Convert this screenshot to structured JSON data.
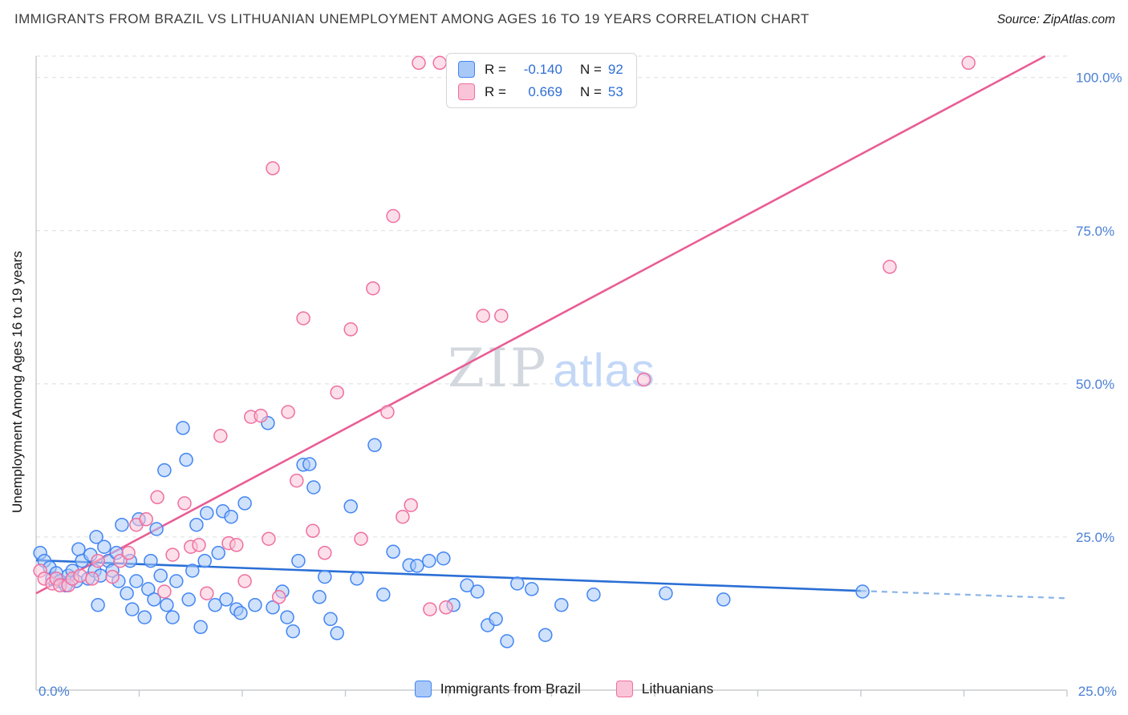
{
  "header": {
    "title": "IMMIGRANTS FROM BRAZIL VS LITHUANIAN UNEMPLOYMENT AMONG AGES 16 TO 19 YEARS CORRELATION CHART",
    "source": "Source: ZipAtlas.com"
  },
  "watermark": {
    "zip": "ZIP",
    "atlas": "atlas"
  },
  "y_axis_label": "Unemployment Among Ages 16 to 19 years",
  "x_axis": {
    "min_label": "0.0%",
    "max_label": "25.0%"
  },
  "stats_legend": {
    "rows": [
      {
        "r_label": "R =",
        "r_value": "-0.140",
        "n_label": "N =",
        "n_value": "92"
      },
      {
        "r_label": "R =",
        "r_value": "0.669",
        "n_label": "N =",
        "n_value": "53"
      }
    ]
  },
  "bottom_legend": {
    "items": [
      {
        "label": "Immigrants from Brazil"
      },
      {
        "label": "Lithuanians"
      }
    ]
  },
  "colors": {
    "accent_text": "#4a80d6",
    "stat_value": "#2f6fd4",
    "grid": "#dcdee1",
    "blue_stroke": "#4285f4",
    "blue_fill": "#a8c8f8",
    "blue_line": "#2a6fd4",
    "blue_dash": "#8ab4e8",
    "pink_stroke": "#ef6fa0",
    "pink_fill": "#f9c4d7",
    "pink_line": "#e95d94"
  },
  "chart_data": {
    "type": "scatter",
    "title": "IMMIGRANTS FROM BRAZIL VS LITHUANIAN UNEMPLOYMENT AMONG AGES 16 TO 19 YEARS CORRELATION CHART",
    "xlabel": "Immigrants from Brazil (%)",
    "ylabel": "Unemployment Among Ages 16 to 19 years",
    "xlim": [
      0,
      0.25
    ],
    "ylim": [
      0,
      1.035
    ],
    "grid": "horizontal-dashed",
    "legend_position": "top-center and bottom-center",
    "xticks": [
      0.025,
      0.05,
      0.075,
      0.1,
      0.125,
      0.15,
      0.175,
      0.2,
      0.225,
      0.25
    ],
    "ygrid": [
      {
        "value": 0.25,
        "label": "25.0%"
      },
      {
        "value": 0.5,
        "label": "50.0%"
      },
      {
        "value": 0.75,
        "label": "75.0%"
      },
      {
        "value": 1.0,
        "label": "100.0%"
      }
    ],
    "series": [
      {
        "name": "Immigrants from Brazil",
        "R": -0.14,
        "N": 92,
        "stroke": "#4285f4",
        "fill": "#a8c8f8",
        "line": "#2a6fd4",
        "dash_line": "#8ab4e8",
        "trend": {
          "solid": [
            [
              0,
              0.212
            ],
            [
              0.2,
              0.162
            ]
          ],
          "dashed": [
            [
              0.2,
              0.162
            ],
            [
              0.25,
              0.15
            ]
          ]
        },
        "points": [
          [
            0.001,
            0.224
          ],
          [
            0.002,
            0.211
          ],
          [
            0.0033,
            0.2
          ],
          [
            0.0039,
            0.182
          ],
          [
            0.0049,
            0.191
          ],
          [
            0.0058,
            0.178
          ],
          [
            0.0072,
            0.171
          ],
          [
            0.0078,
            0.187
          ],
          [
            0.0088,
            0.195
          ],
          [
            0.0097,
            0.178
          ],
          [
            0.0103,
            0.23
          ],
          [
            0.0111,
            0.211
          ],
          [
            0.0126,
            0.182
          ],
          [
            0.0132,
            0.221
          ],
          [
            0.0142,
            0.195
          ],
          [
            0.0146,
            0.25
          ],
          [
            0.015,
            0.139
          ],
          [
            0.0156,
            0.187
          ],
          [
            0.0165,
            0.234
          ],
          [
            0.0175,
            0.211
          ],
          [
            0.0185,
            0.195
          ],
          [
            0.0195,
            0.224
          ],
          [
            0.02,
            0.178
          ],
          [
            0.0208,
            0.27
          ],
          [
            0.022,
            0.158
          ],
          [
            0.0228,
            0.211
          ],
          [
            0.0233,
            0.132
          ],
          [
            0.0243,
            0.178
          ],
          [
            0.0249,
            0.279
          ],
          [
            0.0263,
            0.119
          ],
          [
            0.0272,
            0.165
          ],
          [
            0.0278,
            0.211
          ],
          [
            0.0286,
            0.148
          ],
          [
            0.0292,
            0.263
          ],
          [
            0.0302,
            0.187
          ],
          [
            0.0311,
            0.359
          ],
          [
            0.0317,
            0.139
          ],
          [
            0.0331,
            0.119
          ],
          [
            0.034,
            0.178
          ],
          [
            0.0356,
            0.428
          ],
          [
            0.0364,
            0.376
          ],
          [
            0.037,
            0.148
          ],
          [
            0.0379,
            0.195
          ],
          [
            0.0389,
            0.27
          ],
          [
            0.0399,
            0.103
          ],
          [
            0.0409,
            0.211
          ],
          [
            0.0414,
            0.289
          ],
          [
            0.0434,
            0.139
          ],
          [
            0.0442,
            0.224
          ],
          [
            0.0453,
            0.292
          ],
          [
            0.0461,
            0.148
          ],
          [
            0.0473,
            0.283
          ],
          [
            0.0486,
            0.132
          ],
          [
            0.0496,
            0.126
          ],
          [
            0.0506,
            0.305
          ],
          [
            0.0531,
            0.139
          ],
          [
            0.0562,
            0.436
          ],
          [
            0.0574,
            0.135
          ],
          [
            0.0597,
            0.161
          ],
          [
            0.0609,
            0.119
          ],
          [
            0.0623,
            0.096
          ],
          [
            0.0636,
            0.211
          ],
          [
            0.0648,
            0.368
          ],
          [
            0.0663,
            0.369
          ],
          [
            0.0673,
            0.331
          ],
          [
            0.0687,
            0.152
          ],
          [
            0.07,
            0.185
          ],
          [
            0.0714,
            0.116
          ],
          [
            0.073,
            0.093
          ],
          [
            0.0763,
            0.3
          ],
          [
            0.0778,
            0.182
          ],
          [
            0.0821,
            0.4
          ],
          [
            0.0842,
            0.156
          ],
          [
            0.0866,
            0.226
          ],
          [
            0.0905,
            0.204
          ],
          [
            0.0924,
            0.203
          ],
          [
            0.0953,
            0.211
          ],
          [
            0.0988,
            0.215
          ],
          [
            0.1012,
            0.139
          ],
          [
            0.1045,
            0.171
          ],
          [
            0.107,
            0.161
          ],
          [
            0.1095,
            0.106
          ],
          [
            0.1115,
            0.116
          ],
          [
            0.1142,
            0.08
          ],
          [
            0.1167,
            0.174
          ],
          [
            0.1202,
            0.165
          ],
          [
            0.1235,
            0.09
          ],
          [
            0.1274,
            0.139
          ],
          [
            0.1352,
            0.156
          ],
          [
            0.1527,
            0.158
          ],
          [
            0.1667,
            0.148
          ],
          [
            0.2004,
            0.161
          ]
        ]
      },
      {
        "name": "Lithuanians",
        "R": 0.669,
        "N": 53,
        "stroke": "#ef6fa0",
        "fill": "#f9c4d7",
        "line": "#e95d94",
        "trend": {
          "solid": [
            [
              0,
              0.158
            ],
            [
              0.2447,
              1.035
            ]
          ]
        },
        "points": [
          [
            0.001,
            0.195
          ],
          [
            0.002,
            0.182
          ],
          [
            0.0039,
            0.174
          ],
          [
            0.0049,
            0.182
          ],
          [
            0.0058,
            0.171
          ],
          [
            0.0078,
            0.171
          ],
          [
            0.0088,
            0.182
          ],
          [
            0.0107,
            0.187
          ],
          [
            0.0136,
            0.182
          ],
          [
            0.015,
            0.211
          ],
          [
            0.0185,
            0.185
          ],
          [
            0.0204,
            0.211
          ],
          [
            0.0224,
            0.224
          ],
          [
            0.0243,
            0.27
          ],
          [
            0.0267,
            0.279
          ],
          [
            0.0294,
            0.315
          ],
          [
            0.0311,
            0.161
          ],
          [
            0.0331,
            0.221
          ],
          [
            0.036,
            0.305
          ],
          [
            0.0375,
            0.234
          ],
          [
            0.0395,
            0.237
          ],
          [
            0.0414,
            0.158
          ],
          [
            0.0447,
            0.415
          ],
          [
            0.0467,
            0.24
          ],
          [
            0.0486,
            0.237
          ],
          [
            0.0506,
            0.178
          ],
          [
            0.0521,
            0.446
          ],
          [
            0.0545,
            0.448
          ],
          [
            0.0564,
            0.247
          ],
          [
            0.0574,
            0.852
          ],
          [
            0.0589,
            0.152
          ],
          [
            0.0611,
            0.454
          ],
          [
            0.0632,
            0.342
          ],
          [
            0.0648,
            0.607
          ],
          [
            0.0671,
            0.26
          ],
          [
            0.07,
            0.224
          ],
          [
            0.073,
            0.486
          ],
          [
            0.0763,
            0.589
          ],
          [
            0.0788,
            0.247
          ],
          [
            0.0817,
            0.656
          ],
          [
            0.0852,
            0.454
          ],
          [
            0.0866,
            0.774
          ],
          [
            0.0889,
            0.283
          ],
          [
            0.0909,
            0.302
          ],
          [
            0.0928,
            1.024
          ],
          [
            0.0955,
            0.132
          ],
          [
            0.0979,
            1.024
          ],
          [
            0.0994,
            0.135
          ],
          [
            0.1084,
            0.611
          ],
          [
            0.1128,
            0.611
          ],
          [
            0.1474,
            0.507
          ],
          [
            0.207,
            0.691
          ],
          [
            0.2261,
            1.024
          ]
        ]
      }
    ]
  }
}
